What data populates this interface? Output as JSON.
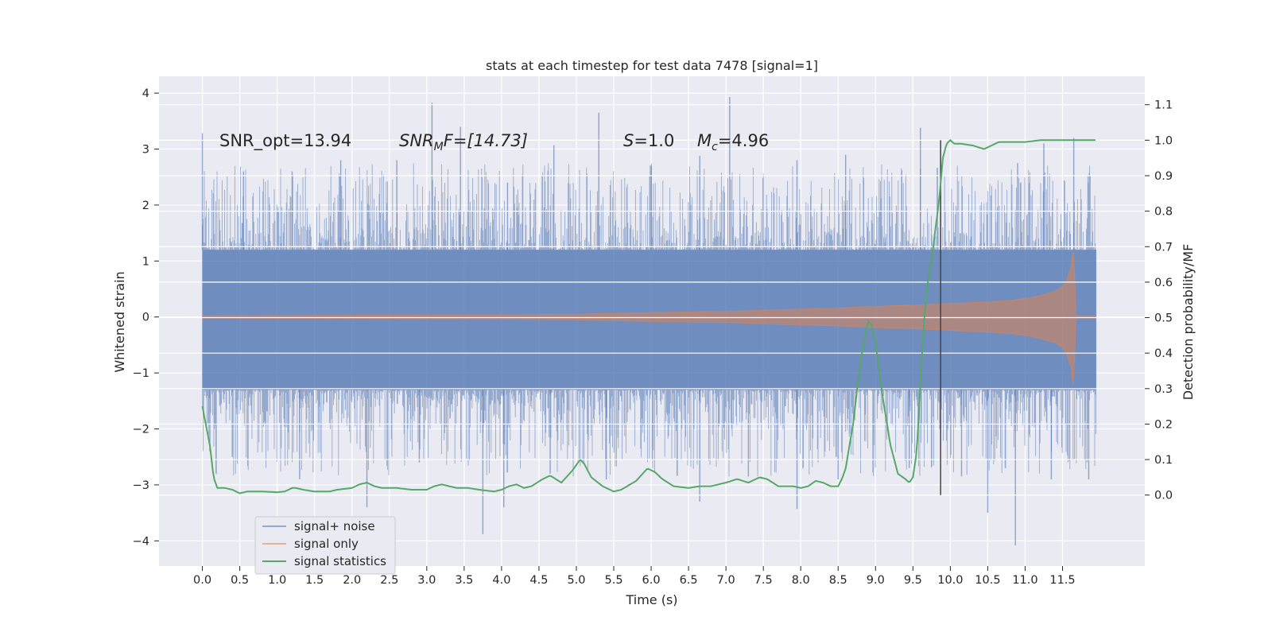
{
  "chart_data": {
    "type": "line",
    "title": "stats at each timestep for test data 7478 [signal=1]",
    "xlabel": "Time (s)",
    "ylabel_left": "Whitened strain",
    "ylabel_right": "Detection probability/MF",
    "xlim": [
      -0.58,
      12.6
    ],
    "ylim_left": [
      -4.45,
      4.3
    ],
    "ylim_right": [
      -0.2,
      1.18
    ],
    "x_ticks": [
      0.0,
      0.5,
      1.0,
      1.5,
      2.0,
      2.5,
      3.0,
      3.5,
      4.0,
      4.5,
      5.0,
      5.5,
      6.0,
      6.5,
      7.0,
      7.5,
      8.0,
      8.5,
      9.0,
      9.5,
      10.0,
      10.5,
      11.0,
      11.5
    ],
    "x_tick_labels": [
      "0.0",
      "0.5",
      "1.0",
      "1.5",
      "2.0",
      "2.5",
      "3.0",
      "3.5",
      "4.0",
      "4.5",
      "5.0",
      "5.5",
      "6.0",
      "6.5",
      "7.0",
      "7.5",
      "8.0",
      "8.5",
      "9.0",
      "9.5",
      "10.0",
      "10.5",
      "11.0",
      "11.5"
    ],
    "y_ticks_left": [
      -4,
      -3,
      -2,
      -1,
      0,
      1,
      2,
      3,
      4
    ],
    "y_tick_labels_left": [
      "−4",
      "−3",
      "−2",
      "−1",
      "0",
      "1",
      "2",
      "3",
      "4"
    ],
    "y_ticks_right": [
      0.0,
      0.1,
      0.2,
      0.3,
      0.4,
      0.5,
      0.6,
      0.7,
      0.8,
      0.9,
      1.0,
      1.1
    ],
    "y_tick_labels_right": [
      "0.0",
      "0.1",
      "0.2",
      "0.3",
      "0.4",
      "0.5",
      "0.6",
      "0.7",
      "0.8",
      "0.9",
      "1.0",
      "1.1"
    ],
    "grid": true,
    "legend_position": "lower-left",
    "annotations": {
      "snr_opt": "SNR_opt=13.94",
      "snr_mf_main": "SNR",
      "snr_mf_sub": "M",
      "snr_mf_rest": "F=[14.73]",
      "s_main": "S",
      "s_rest": "=1.0",
      "mc_main": "M",
      "mc_sub": "c",
      "mc_rest": "=4.96"
    },
    "vertical_marker_x": 9.87,
    "series": [
      {
        "name": "signal+ noise",
        "color": "#4c72b0",
        "axis": "left",
        "style": "noise band",
        "x_range": [
          0.0,
          11.95
        ],
        "typical_envelope": [
          -1.3,
          1.2
        ],
        "peaks_above": [
          [
            0.0,
            3.28
          ],
          [
            0.55,
            2.6
          ],
          [
            1.2,
            2.6
          ],
          [
            1.85,
            2.8
          ],
          [
            2.6,
            2.8
          ],
          [
            3.07,
            3.83
          ],
          [
            3.45,
            3.4
          ],
          [
            4.08,
            2.4
          ],
          [
            4.7,
            3.07
          ],
          [
            5.3,
            3.65
          ],
          [
            6.0,
            2.7
          ],
          [
            6.65,
            2.88
          ],
          [
            7.05,
            3.93
          ],
          [
            7.95,
            2.8
          ],
          [
            8.6,
            2.9
          ],
          [
            9.6,
            3.38
          ],
          [
            9.87,
            3.0
          ],
          [
            10.9,
            2.75
          ],
          [
            11.25,
            3.1
          ],
          [
            11.65,
            3.2
          ]
        ],
        "peaks_below": [
          [
            0.1,
            -2.4
          ],
          [
            0.4,
            -2.5
          ],
          [
            1.3,
            -2.9
          ],
          [
            2.2,
            -3.4
          ],
          [
            2.9,
            -2.6
          ],
          [
            3.75,
            -3.88
          ],
          [
            4.03,
            -3.4
          ],
          [
            4.65,
            -2.8
          ],
          [
            5.4,
            -2.9
          ],
          [
            6.65,
            -3.3
          ],
          [
            7.3,
            -2.85
          ],
          [
            7.95,
            -3.43
          ],
          [
            8.5,
            -2.9
          ],
          [
            9.45,
            -2.7
          ],
          [
            10.15,
            -2.85
          ],
          [
            10.5,
            -3.5
          ],
          [
            10.87,
            -4.08
          ],
          [
            11.35,
            -2.9
          ],
          [
            11.85,
            -2.9
          ]
        ]
      },
      {
        "name": "signal only",
        "color": "#dd8452",
        "axis": "left",
        "style": "chirp envelope",
        "x": [
          0.0,
          1.0,
          2.0,
          3.0,
          4.0,
          5.0,
          6.0,
          6.5,
          7.0,
          7.5,
          8.0,
          8.5,
          9.0,
          9.5,
          10.0,
          10.5,
          10.8,
          11.0,
          11.2,
          11.4,
          11.5,
          11.55,
          11.62,
          11.64,
          11.66,
          11.68,
          11.7,
          11.95
        ],
        "envelope": [
          0.02,
          0.025,
          0.03,
          0.035,
          0.04,
          0.05,
          0.08,
          0.09,
          0.1,
          0.12,
          0.14,
          0.16,
          0.19,
          0.21,
          0.24,
          0.27,
          0.3,
          0.33,
          0.38,
          0.46,
          0.55,
          0.65,
          0.92,
          1.2,
          0.8,
          0.05,
          0.02,
          0.02
        ],
        "lower_envelope": [
          -0.02,
          -0.025,
          -0.03,
          -0.035,
          -0.04,
          -0.05,
          -0.08,
          -0.09,
          -0.1,
          -0.12,
          -0.14,
          -0.16,
          -0.19,
          -0.21,
          -0.24,
          -0.27,
          -0.3,
          -0.33,
          -0.38,
          -0.46,
          -0.55,
          -0.65,
          -0.92,
          -1.22,
          -0.8,
          -0.05,
          -0.02,
          -0.02
        ]
      },
      {
        "name": "signal statistics",
        "color": "#55a868",
        "axis": "right",
        "style": "line",
        "x": [
          0.0,
          0.1,
          0.15,
          0.2,
          0.3,
          0.4,
          0.5,
          0.6,
          0.8,
          1.0,
          1.1,
          1.2,
          1.25,
          1.35,
          1.5,
          1.7,
          1.8,
          2.0,
          2.1,
          2.2,
          2.3,
          2.4,
          2.6,
          2.8,
          3.0,
          3.1,
          3.2,
          3.3,
          3.4,
          3.55,
          3.7,
          3.9,
          4.0,
          4.1,
          4.2,
          4.3,
          4.4,
          4.55,
          4.65,
          4.8,
          4.95,
          5.05,
          5.1,
          5.2,
          5.35,
          5.5,
          5.6,
          5.8,
          5.95,
          6.05,
          6.15,
          6.3,
          6.5,
          6.65,
          6.8,
          7.0,
          7.15,
          7.3,
          7.45,
          7.55,
          7.7,
          7.9,
          8.0,
          8.1,
          8.2,
          8.3,
          8.4,
          8.5,
          8.55,
          8.6,
          8.7,
          8.8,
          8.9,
          8.95,
          9.0,
          9.1,
          9.2,
          9.3,
          9.4,
          9.45,
          9.5,
          9.55,
          9.6,
          9.65,
          9.7,
          9.75,
          9.8,
          9.85,
          9.9,
          9.95,
          10.0,
          10.05,
          10.15,
          10.3,
          10.45,
          10.55,
          10.65,
          10.8,
          11.0,
          11.2,
          11.4,
          11.6,
          11.8,
          11.95
        ],
        "y": [
          0.25,
          0.14,
          0.05,
          0.02,
          0.02,
          0.015,
          0.005,
          0.01,
          0.01,
          0.008,
          0.01,
          0.02,
          0.02,
          0.015,
          0.01,
          0.01,
          0.015,
          0.02,
          0.03,
          0.035,
          0.025,
          0.02,
          0.02,
          0.015,
          0.015,
          0.025,
          0.03,
          0.025,
          0.02,
          0.02,
          0.015,
          0.01,
          0.015,
          0.025,
          0.03,
          0.02,
          0.025,
          0.045,
          0.055,
          0.035,
          0.07,
          0.1,
          0.09,
          0.05,
          0.025,
          0.01,
          0.015,
          0.04,
          0.075,
          0.065,
          0.045,
          0.025,
          0.02,
          0.025,
          0.025,
          0.035,
          0.045,
          0.035,
          0.05,
          0.045,
          0.025,
          0.025,
          0.02,
          0.025,
          0.04,
          0.035,
          0.025,
          0.025,
          0.045,
          0.075,
          0.2,
          0.38,
          0.49,
          0.48,
          0.43,
          0.27,
          0.14,
          0.06,
          0.045,
          0.035,
          0.05,
          0.12,
          0.31,
          0.5,
          0.6,
          0.66,
          0.75,
          0.83,
          0.95,
          0.99,
          1.0,
          0.99,
          0.99,
          0.985,
          0.975,
          0.985,
          0.995,
          0.995,
          0.995,
          1.0,
          1.0,
          1.0,
          1.0,
          1.0
        ]
      }
    ]
  }
}
